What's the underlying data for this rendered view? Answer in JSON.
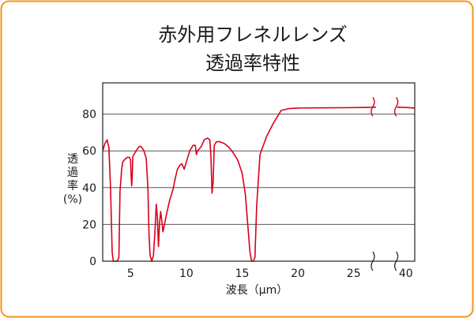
{
  "chart_data": {
    "type": "line",
    "title": "赤外用フレネルレンズ",
    "subtitle": "透過率特性",
    "xlabel": "波長（μm）",
    "ylabel_lines": [
      "透",
      "過",
      "率",
      "(%)"
    ],
    "x_ticks": [
      5,
      10,
      15,
      20,
      25,
      40
    ],
    "x_tick_labels": [
      "5",
      "10",
      "15",
      "20",
      "25",
      "40"
    ],
    "y_ticks": [
      0,
      20,
      40,
      60,
      80
    ],
    "y_tick_labels": [
      "0",
      "20",
      "40",
      "60",
      "80"
    ],
    "ylim": [
      0,
      97
    ],
    "xlim": [
      2.5,
      41
    ],
    "axis_break_between": [
      27,
      39
    ],
    "grid": true,
    "colors": {
      "line": "#d9001b",
      "frame": "#f7931e",
      "grid": "#555555",
      "text": "#1a1a1a"
    },
    "series": [
      {
        "points": [
          [
            2.5,
            60
          ],
          [
            2.7,
            64
          ],
          [
            2.9,
            66
          ],
          [
            3.05,
            62
          ],
          [
            3.2,
            40
          ],
          [
            3.35,
            5
          ],
          [
            3.45,
            0
          ],
          [
            3.6,
            0
          ],
          [
            3.8,
            0
          ],
          [
            3.95,
            2
          ],
          [
            4.05,
            38
          ],
          [
            4.2,
            50
          ],
          [
            4.3,
            54
          ],
          [
            4.5,
            55.5
          ],
          [
            4.7,
            56.5
          ],
          [
            4.9,
            56.5
          ],
          [
            5.0,
            55
          ],
          [
            5.05,
            46
          ],
          [
            5.1,
            41
          ],
          [
            5.15,
            46
          ],
          [
            5.2,
            57
          ],
          [
            5.4,
            59
          ],
          [
            5.6,
            61
          ],
          [
            5.8,
            62.5
          ],
          [
            6.0,
            62
          ],
          [
            6.2,
            60
          ],
          [
            6.4,
            56
          ],
          [
            6.55,
            40
          ],
          [
            6.65,
            15
          ],
          [
            6.75,
            3
          ],
          [
            6.9,
            0
          ],
          [
            7.05,
            3
          ],
          [
            7.2,
            18
          ],
          [
            7.3,
            31
          ],
          [
            7.4,
            24
          ],
          [
            7.5,
            8
          ],
          [
            7.6,
            21
          ],
          [
            7.7,
            27
          ],
          [
            7.8,
            22
          ],
          [
            7.9,
            16
          ],
          [
            8.0,
            19
          ],
          [
            8.2,
            25
          ],
          [
            8.5,
            33
          ],
          [
            8.8,
            39
          ],
          [
            9.0,
            45
          ],
          [
            9.2,
            50
          ],
          [
            9.4,
            52
          ],
          [
            9.6,
            53
          ],
          [
            9.8,
            50
          ],
          [
            10.0,
            54
          ],
          [
            10.3,
            60
          ],
          [
            10.6,
            63
          ],
          [
            10.8,
            63
          ],
          [
            10.9,
            58
          ],
          [
            11.0,
            60
          ],
          [
            11.3,
            62
          ],
          [
            11.6,
            66
          ],
          [
            11.9,
            67
          ],
          [
            12.1,
            66
          ],
          [
            12.2,
            57
          ],
          [
            12.3,
            37
          ],
          [
            12.4,
            43
          ],
          [
            12.5,
            63
          ],
          [
            12.7,
            65
          ],
          [
            13.0,
            65
          ],
          [
            13.4,
            64
          ],
          [
            13.8,
            62
          ],
          [
            14.2,
            59
          ],
          [
            14.6,
            55
          ],
          [
            15.0,
            48
          ],
          [
            15.3,
            36
          ],
          [
            15.5,
            20
          ],
          [
            15.7,
            5
          ],
          [
            15.85,
            0
          ],
          [
            16.0,
            0
          ],
          [
            16.15,
            2
          ],
          [
            16.3,
            30
          ],
          [
            16.6,
            58
          ],
          [
            17.2,
            68
          ],
          [
            17.8,
            75
          ],
          [
            18.5,
            82
          ],
          [
            19.2,
            83
          ],
          [
            20.0,
            83.3
          ],
          [
            22.0,
            83.4
          ],
          [
            24.0,
            83.5
          ],
          [
            26.0,
            83.6
          ],
          [
            27.0,
            83.8
          ]
        ]
      },
      {
        "points": [
          [
            39.0,
            83.8
          ],
          [
            40.0,
            83.6
          ],
          [
            41.0,
            83.3
          ]
        ]
      }
    ]
  }
}
